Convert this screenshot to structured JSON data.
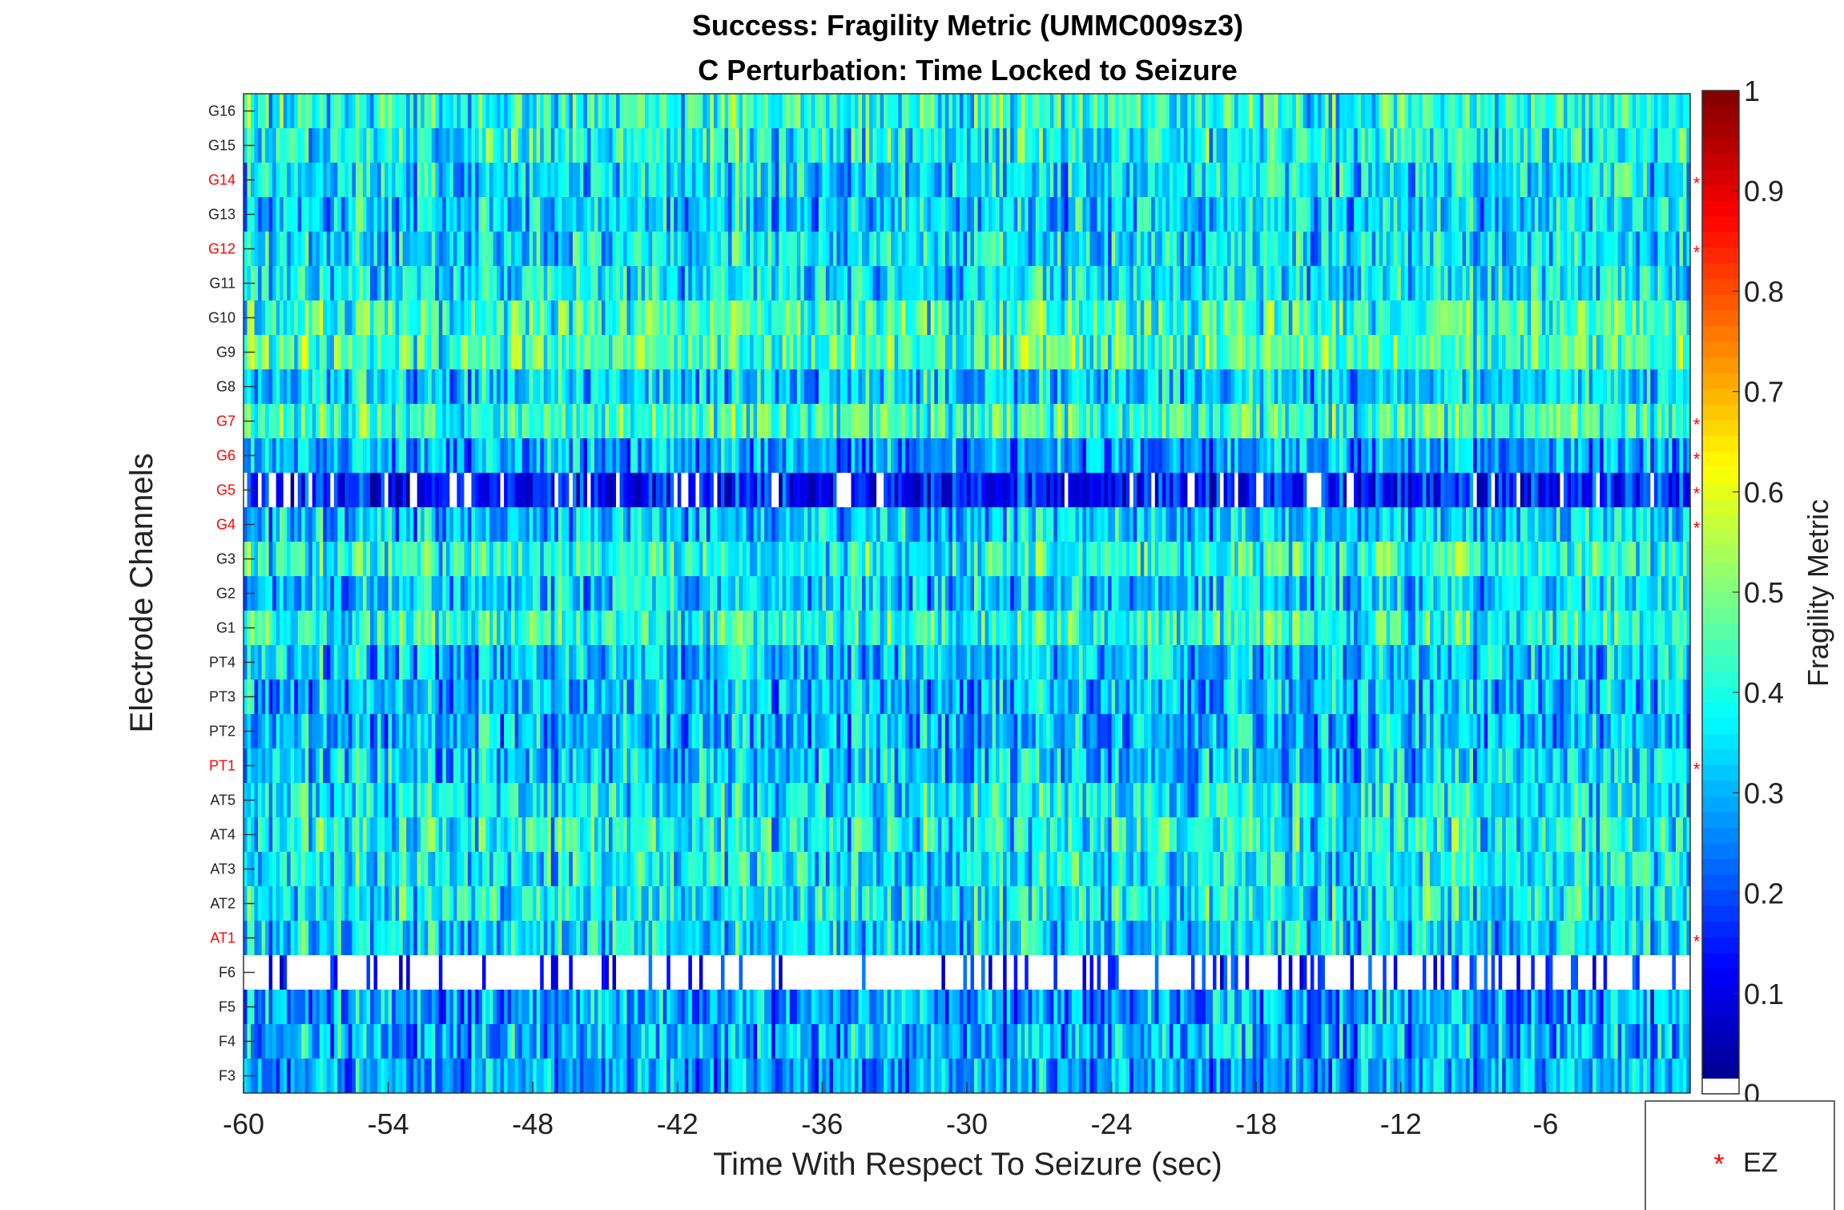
{
  "chart_data": {
    "type": "heatmap",
    "title_line1": "Success: Fragility Metric (UMMC009sz3)",
    "title_line2": "C Perturbation:  Time Locked to Seizure",
    "xlabel": "Time With Respect To Seizure (sec)",
    "ylabel": "Electrode Channels",
    "xlim": [
      -60,
      0
    ],
    "x_ticks": [
      "-60",
      "-54",
      "-48",
      "-42",
      "-36",
      "-30",
      "-24",
      "-18",
      "-12",
      "-6"
    ],
    "x_tick_values": [
      -60,
      -54,
      -48,
      -42,
      -36,
      -30,
      -24,
      -18,
      -12,
      -6
    ],
    "channels": [
      "G16",
      "G15",
      "G14",
      "G13",
      "G12",
      "G11",
      "G10",
      "G9",
      "G8",
      "G7",
      "G6",
      "G5",
      "G4",
      "G3",
      "G2",
      "G1",
      "PT4",
      "PT3",
      "PT2",
      "PT1",
      "AT5",
      "AT4",
      "AT3",
      "AT2",
      "AT1",
      "F6",
      "F5",
      "F4",
      "F3"
    ],
    "ez_channels": [
      "G14",
      "G12",
      "G7",
      "G6",
      "G5",
      "G4",
      "PT1",
      "AT1"
    ],
    "row_mean_fragility": [
      0.4,
      0.38,
      0.35,
      0.33,
      0.34,
      0.36,
      0.42,
      0.44,
      0.33,
      0.42,
      0.28,
      0.12,
      0.32,
      0.4,
      0.33,
      0.4,
      0.32,
      0.3,
      0.3,
      0.33,
      0.36,
      0.38,
      0.36,
      0.37,
      0.34,
      0.03,
      0.28,
      0.3,
      0.28
    ],
    "colorbar": {
      "label": "Fragility Metric",
      "range": [
        0,
        1
      ],
      "ticks": [
        "0",
        "0.1",
        "0.2",
        "0.3",
        "0.4",
        "0.5",
        "0.6",
        "0.7",
        "0.8",
        "0.9",
        "1"
      ],
      "tick_values": [
        0,
        0.1,
        0.2,
        0.3,
        0.4,
        0.5,
        0.6,
        0.7,
        0.8,
        0.9,
        1
      ]
    },
    "legend": {
      "placement": "bottom-right",
      "marker": "*",
      "label": "EZ"
    },
    "colors": {
      "ez_label": "#ff0000",
      "normal_label": "#222222"
    }
  }
}
